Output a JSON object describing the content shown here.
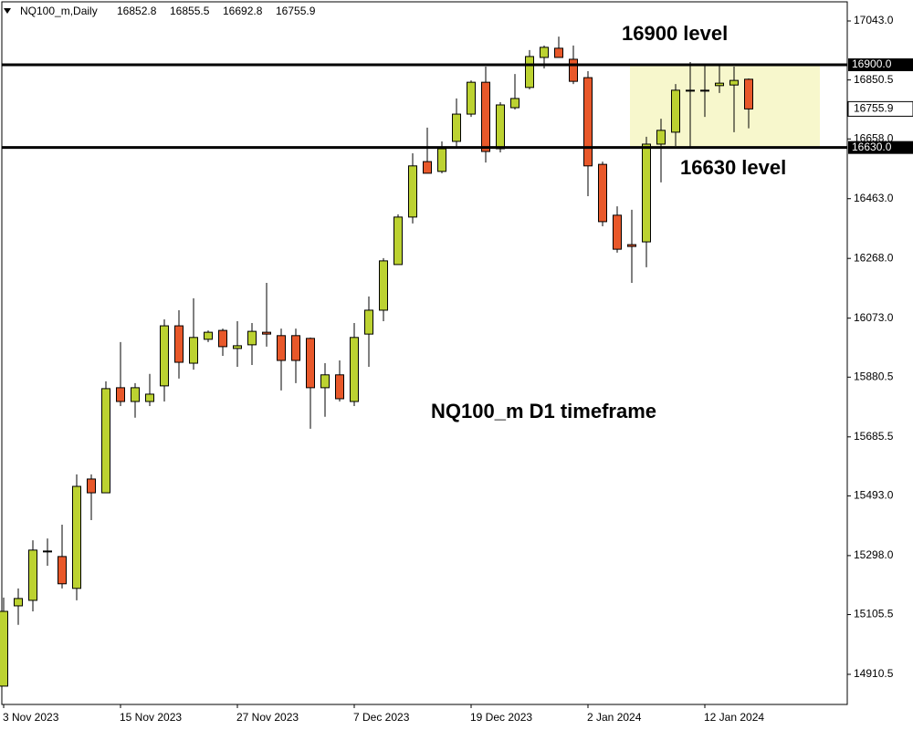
{
  "chart_data": {
    "type": "candlestick",
    "symbol": "NQ100_m,Daily",
    "categories": [
      "3 Nov 2023",
      null,
      null,
      null,
      null,
      null,
      null,
      null,
      "15 Nov 2023",
      null,
      null,
      null,
      null,
      null,
      null,
      null,
      "27 Nov 2023",
      null,
      null,
      null,
      null,
      null,
      null,
      null,
      "7 Dec 2023",
      null,
      null,
      null,
      null,
      null,
      null,
      null,
      "19 Dec 2023",
      null,
      null,
      null,
      null,
      null,
      null,
      null,
      "2 Jan 2024",
      null,
      null,
      null,
      null,
      null,
      null,
      null,
      "12 Jan 2024",
      null,
      null,
      null
    ],
    "open": [
      14872,
      15134,
      15152,
      15310,
      15295,
      15191,
      15548,
      15503,
      15846,
      15801,
      15801,
      15852,
      16048,
      15926,
      16004,
      16033,
      15974,
      15986,
      16027,
      16016,
      16016,
      16007,
      15846,
      15888,
      15801,
      16021,
      16099,
      16248,
      16403,
      16584,
      16552,
      16650,
      16739,
      16843,
      16626,
      16760,
      16826,
      16924,
      16954,
      16918,
      16858,
      16575,
      16409,
      16313,
      16322,
      16641,
      16680,
      16814,
      16817,
      16832,
      16834,
      16852.8
    ],
    "high": [
      15161,
      15191,
      15348,
      15354,
      15399,
      15563,
      15563,
      15867,
      15995,
      15861,
      15891,
      16069,
      16099,
      16138,
      16033,
      16039,
      16063,
      16057,
      16188,
      16039,
      16039,
      16010,
      15926,
      15935,
      16057,
      16144,
      16269,
      16412,
      16611,
      16695,
      16650,
      16790,
      16849,
      16894,
      16778,
      16870,
      16948,
      16963,
      16992,
      16963,
      16879,
      16584,
      16438,
      16427,
      16665,
      16724,
      16837,
      16909,
      16897,
      16897,
      16894,
      16855.5
    ],
    "low": [
      14872,
      15072,
      15116,
      15265,
      15191,
      15152,
      15414,
      15503,
      15786,
      15748,
      15786,
      15801,
      15876,
      15905,
      15995,
      15950,
      15914,
      15920,
      15980,
      15837,
      15861,
      15712,
      15751,
      15801,
      15786,
      15914,
      16063,
      16248,
      16382,
      16546,
      16546,
      16626,
      16730,
      16581,
      16614,
      16754,
      16820,
      16888,
      16924,
      16837,
      16471,
      16373,
      16287,
      16188,
      16239,
      16516,
      16635,
      16626,
      16730,
      16808,
      16680,
      16692.8
    ],
    "close": [
      15116,
      15158,
      15316,
      15313,
      15206,
      15524,
      15503,
      15843,
      15801,
      15846,
      15825,
      16048,
      15929,
      16010,
      16027,
      15980,
      15983,
      16030,
      16021,
      15935,
      15935,
      15846,
      15888,
      15810,
      16010,
      16099,
      16260,
      16403,
      16570,
      16546,
      16626,
      16739,
      16843,
      16617,
      16769,
      16790,
      16927,
      16957,
      16924,
      16846,
      16570,
      16388,
      16298,
      16307,
      16641,
      16686,
      16817,
      16817,
      16814,
      16840,
      16849,
      16755.9
    ],
    "up_color": "#bcd231",
    "down_color": "#e8582a",
    "ylim": [
      14812.2,
      17105.5
    ],
    "yticks": [
      {
        "value": 17043,
        "label": "17043.0"
      },
      {
        "value": 16850.5,
        "label": "16850.5"
      },
      {
        "value": 16658,
        "label": "16658.0"
      },
      {
        "value": 16463,
        "label": "16463.0"
      },
      {
        "value": 16268,
        "label": "16268.0"
      },
      {
        "value": 16073,
        "label": "16073.0"
      },
      {
        "value": 15880.5,
        "label": "15880.5"
      },
      {
        "value": 15685.5,
        "label": "15685.5"
      },
      {
        "value": 15493,
        "label": "15493.0"
      },
      {
        "value": 15298,
        "label": "15298.0"
      },
      {
        "value": 15105.5,
        "label": "15105.5"
      },
      {
        "value": 14910.5,
        "label": "14910.5"
      }
    ],
    "zone": {
      "from": 16630,
      "to": 16900,
      "color": "#f7f7cc"
    },
    "hlines": [
      {
        "value": 16900,
        "label": "16900.0"
      },
      {
        "value": 16630,
        "label": "16630.0"
      }
    ],
    "current_price": 16755.9,
    "annotations": [
      "16900 level",
      "16630 level",
      "NQ100_m D1 timeframe"
    ]
  }
}
